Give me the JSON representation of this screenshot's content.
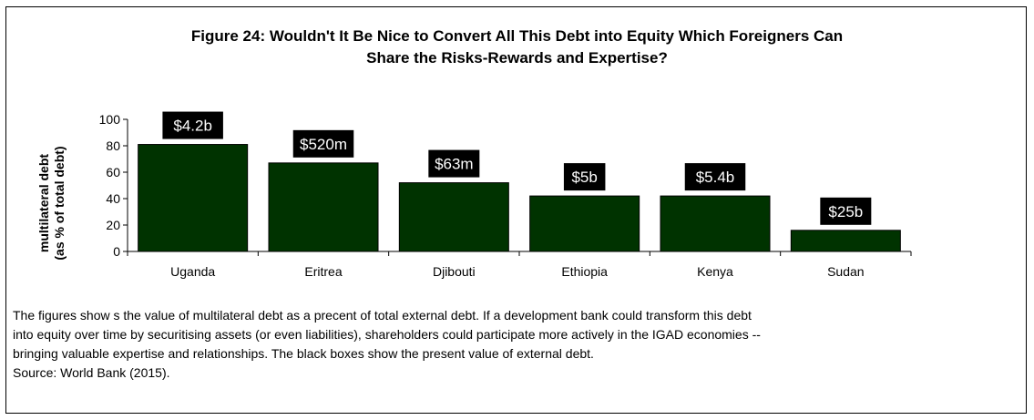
{
  "chart_data": {
    "type": "bar",
    "title_lines": [
      "Figure 24: Wouldn't It Be Nice to Convert All This Debt into Equity Which Foreigners Can",
      "Share the Risks-Rewards and Expertise?"
    ],
    "ylabel_lines": [
      "multilateral debt",
      "(as % of total debt)"
    ],
    "xlabel": "",
    "categories": [
      "Uganda",
      "Eritrea",
      "Djibouti",
      "Ethiopia",
      "Kenya",
      "Sudan"
    ],
    "values": [
      81,
      67,
      52,
      42,
      42,
      16
    ],
    "data_labels": [
      "$4.2b",
      "$520m",
      "$63m",
      "$5b",
      "$5.4b",
      "$25b"
    ],
    "ylim": [
      0,
      100
    ],
    "yticks": [
      0,
      20,
      40,
      60,
      80,
      100
    ],
    "grid": false,
    "bar_color": "#003300",
    "label_box_color": "#000000",
    "label_text_color": "#ffffff"
  },
  "caption": {
    "lines": [
      "The figures show s the value of multilateral debt as a precent of total external debt. If a development bank could transform this debt",
      "into equity over time by securitising assets (or even liabilities), shareholders could participate more actively in the IGAD economies --",
      "bringing valuable expertise and relationships. The black boxes show  the present value of external debt.",
      "Source: World Bank (2015)."
    ]
  }
}
